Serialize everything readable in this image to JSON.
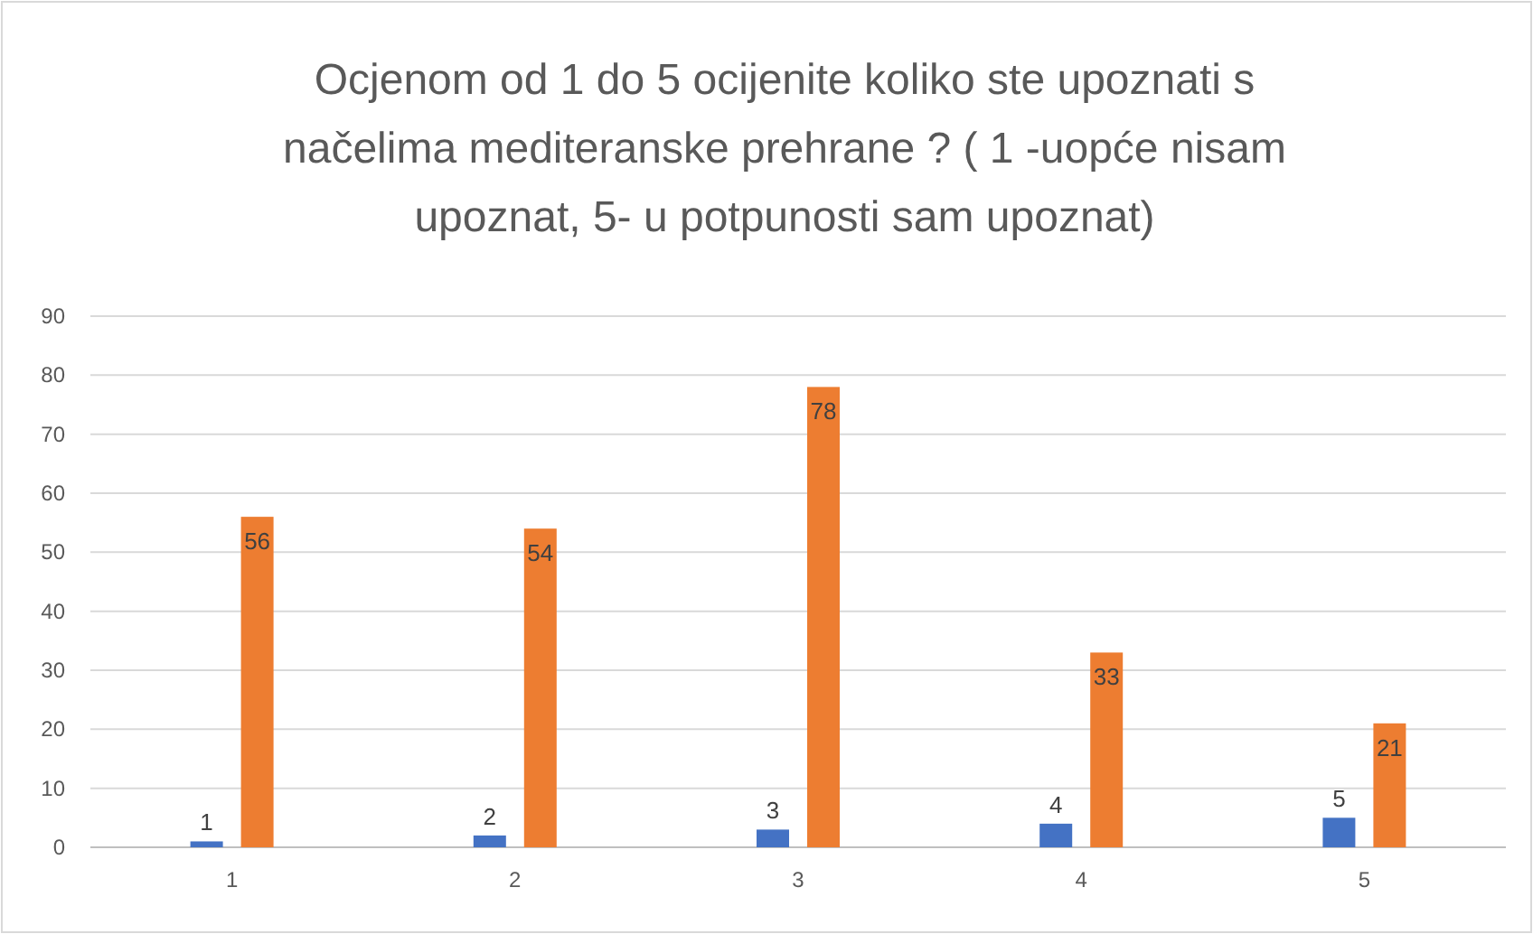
{
  "chart_data": {
    "type": "bar",
    "title": "Ocjenom od 1 do 5 ocijenite koliko ste upoznati s načelima mediteranske prehrane ? ( 1 -uopće nisam upoznat, 5- u potpunosti sam upoznat)",
    "categories": [
      "1",
      "2",
      "3",
      "4",
      "5"
    ],
    "series": [
      {
        "color": "#4472c4",
        "values": [
          1,
          2,
          3,
          4,
          5
        ]
      },
      {
        "color": "#ed7d31",
        "values": [
          56,
          54,
          78,
          33,
          21
        ]
      }
    ],
    "ylim": [
      0,
      90
    ],
    "yticks": [
      0,
      10,
      20,
      30,
      40,
      50,
      60,
      70,
      80,
      90
    ],
    "grid": "y",
    "data_labels": true
  }
}
